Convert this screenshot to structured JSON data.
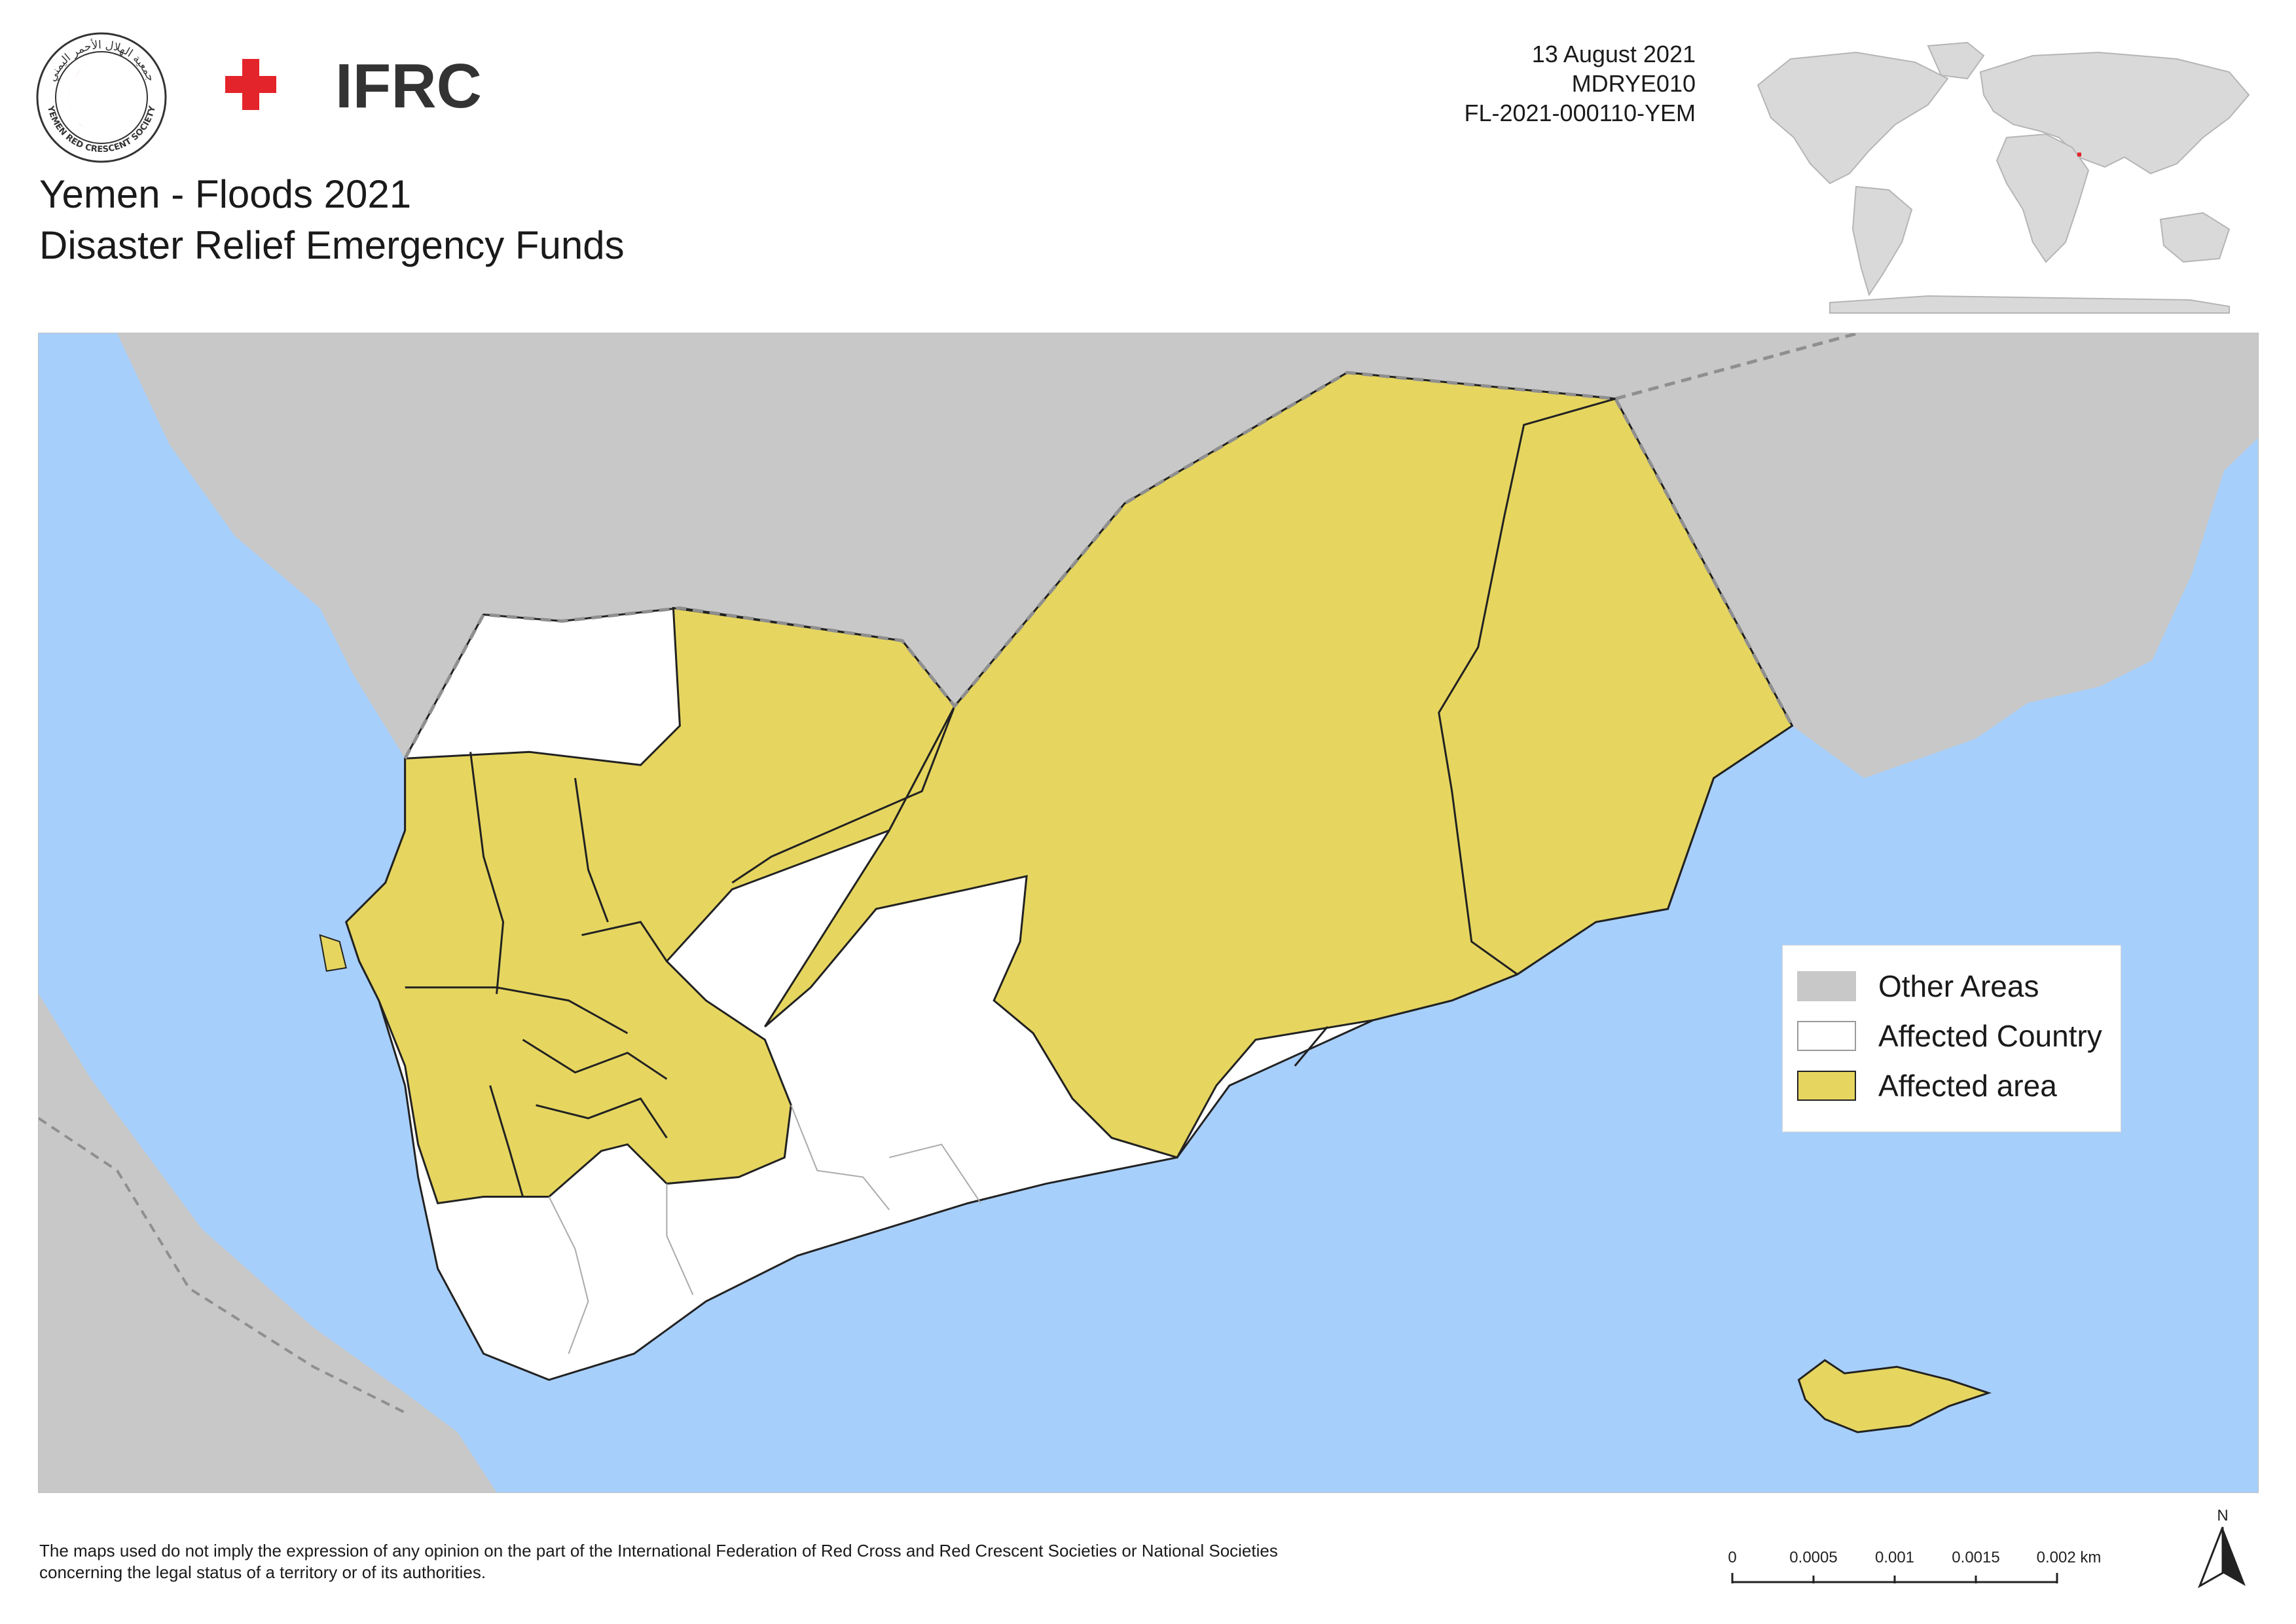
{
  "header": {
    "title_line1": "Yemen - Floods 2021",
    "title_line2": "Disaster Relief Emergency Funds",
    "date": "13 August 2021",
    "appeal_code": "MDRYE010",
    "glide_number": "FL-2021-000110-YEM"
  },
  "logos": {
    "ifrc_text": "IFRC",
    "yrcs_text_en": "YEMEN RED CRESCENT SOCIETY",
    "yrcs_text_ar": "جمعية الهلال الأحمر اليمني"
  },
  "legend": {
    "items": [
      {
        "label": "Other Areas",
        "color": "#c8c8c8"
      },
      {
        "label": "Affected Country",
        "color": "#ffffff"
      },
      {
        "label": "Affected area",
        "color": "#e6d65f"
      }
    ]
  },
  "colors": {
    "sea": "#a7cffb",
    "other_areas": "#c8c8c8",
    "affected_country": "#ffffff",
    "affected_area": "#e6d65f",
    "ifrc_red": "#e3242b",
    "ifrc_text": "#333333",
    "inset_highlight": "#e3242b"
  },
  "disclaimer": {
    "line1": "The maps used do not imply the expression of any opinion on the part of the International Federation of Red Cross and Red Crescent Societies or National Societies",
    "line2": "concerning the legal status of a territory or of its authorities."
  },
  "scale_bar": {
    "ticks": [
      "0",
      "0.0005",
      "0.001",
      "0.0015",
      "0.002 km"
    ]
  },
  "north_arrow": {
    "label": "N"
  }
}
